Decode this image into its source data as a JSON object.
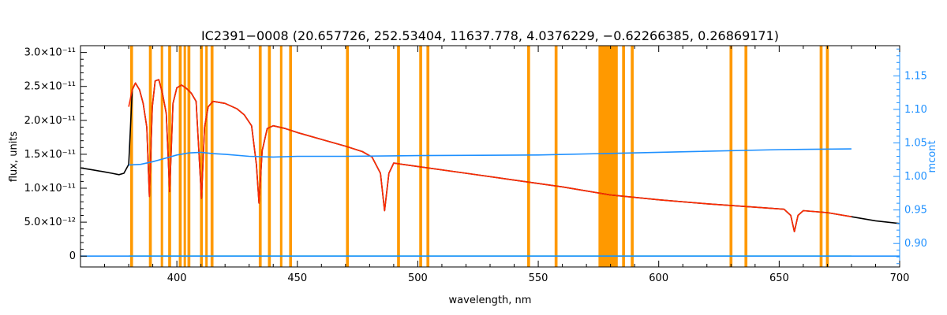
{
  "chart_data": {
    "type": "line",
    "title": "IC2391−0008    (20.657726, 252.53404, 11637.778, 4.0376229, −0.62266385, 0.26869171)",
    "xlabel": "wavelength, nm",
    "ylabel": "flux, units",
    "ylabel_right": "mcont",
    "xlim": [
      360,
      700
    ],
    "ylim": [
      -1.6e-12,
      3.1e-11
    ],
    "ylim_right": [
      0.865,
      1.195
    ],
    "x_ticks": [
      400,
      450,
      500,
      550,
      600,
      650,
      700
    ],
    "y_ticks": [
      {
        "value": 0,
        "label": "0"
      },
      {
        "value": 5e-12,
        "label": "5.0×10⁻¹²"
      },
      {
        "value": 1e-11,
        "label": "1.0×10⁻¹¹"
      },
      {
        "value": 1.5e-11,
        "label": "1.5×10⁻¹¹"
      },
      {
        "value": 2e-11,
        "label": "2.0×10⁻¹¹"
      },
      {
        "value": 2.5e-11,
        "label": "2.5×10⁻¹¹"
      },
      {
        "value": 3e-11,
        "label": "3.0×10⁻¹¹"
      }
    ],
    "y_ticks_right": [
      0.9,
      0.95,
      1.0,
      1.05,
      1.1,
      1.15
    ],
    "masked_regions": [
      [
        380.6,
        381.8
      ],
      [
        388.4,
        389.6
      ],
      [
        393.3,
        394.3
      ],
      [
        396.4,
        397.6
      ],
      [
        400.8,
        402.0
      ],
      [
        402.8,
        403.8
      ],
      [
        404.4,
        405.6
      ],
      [
        409.6,
        410.8
      ],
      [
        411.8,
        412.8
      ],
      [
        414.0,
        415.2
      ],
      [
        434.0,
        435.2
      ],
      [
        437.8,
        439.0
      ],
      [
        442.8,
        443.8
      ],
      [
        446.6,
        447.8
      ],
      [
        470.2,
        471.4
      ],
      [
        491.4,
        492.6
      ],
      [
        500.6,
        501.8
      ],
      [
        503.6,
        504.8
      ],
      [
        545.4,
        546.6
      ],
      [
        556.8,
        558.0
      ],
      [
        575.0,
        583.0
      ],
      [
        584.8,
        586.0
      ],
      [
        588.4,
        589.6
      ],
      [
        629.4,
        630.6
      ],
      [
        635.6,
        636.8
      ],
      [
        666.8,
        668.0
      ],
      [
        669.4,
        670.6
      ]
    ],
    "mask_color": "#ff9900",
    "series": [
      {
        "color": "#000000",
        "points": [
          [
            360,
            1.3e-11
          ],
          [
            365,
            1.27e-11
          ],
          [
            370,
            1.24e-11
          ],
          [
            373,
            1.22e-11
          ],
          [
            376,
            1.2e-11
          ],
          [
            378,
            1.22e-11
          ],
          [
            380,
            1.35e-11
          ],
          [
            381.5,
            2.45e-11
          ],
          [
            382.8,
            2.55e-11
          ],
          [
            384.5,
            2.45e-11
          ],
          [
            386,
            2.25e-11
          ],
          [
            387.5,
            1.9e-11
          ],
          [
            388.6,
            8.8e-12
          ],
          [
            389.8,
            2.2e-11
          ],
          [
            391,
            2.58e-11
          ],
          [
            392.5,
            2.6e-11
          ],
          [
            394,
            2.4e-11
          ],
          [
            395.6,
            2.1e-11
          ],
          [
            397,
            9.5e-12
          ],
          [
            398.4,
            2.25e-11
          ],
          [
            400,
            2.48e-11
          ],
          [
            402,
            2.52e-11
          ],
          [
            404,
            2.47e-11
          ],
          [
            406,
            2.4e-11
          ],
          [
            408,
            2.28e-11
          ],
          [
            410.2,
            8.5e-12
          ],
          [
            411.5,
            1.9e-11
          ],
          [
            413,
            2.2e-11
          ],
          [
            415,
            2.28e-11
          ],
          [
            420,
            2.25e-11
          ],
          [
            425,
            2.17e-11
          ],
          [
            428,
            2.08e-11
          ],
          [
            431,
            1.92e-11
          ],
          [
            433,
            1.35e-11
          ],
          [
            434.1,
            7.8e-12
          ],
          [
            435.4,
            1.55e-11
          ],
          [
            437.5,
            1.88e-11
          ],
          [
            440,
            1.92e-11
          ],
          [
            445,
            1.88e-11
          ],
          [
            450,
            1.82e-11
          ],
          [
            460,
            1.72e-11
          ],
          [
            470,
            1.62e-11
          ],
          [
            477,
            1.54e-11
          ],
          [
            481,
            1.46e-11
          ],
          [
            484.5,
            1.22e-11
          ],
          [
            486.2,
            6.7e-12
          ],
          [
            488,
            1.22e-11
          ],
          [
            490,
            1.37e-11
          ],
          [
            500,
            1.32e-11
          ],
          [
            520,
            1.22e-11
          ],
          [
            540,
            1.12e-11
          ],
          [
            560,
            1.02e-11
          ],
          [
            580,
            9e-12
          ],
          [
            600,
            8.3e-12
          ],
          [
            620,
            7.7e-12
          ],
          [
            640,
            7.2e-12
          ],
          [
            652,
            6.9e-12
          ],
          [
            654.8,
            6e-12
          ],
          [
            656.3,
            3.6e-12
          ],
          [
            657.8,
            6e-12
          ],
          [
            660,
            6.7e-12
          ],
          [
            670,
            6.4e-12
          ],
          [
            680,
            5.8e-12
          ],
          [
            690,
            5.2e-12
          ],
          [
            700,
            4.8e-12
          ]
        ]
      },
      {
        "color": "#ff2a00",
        "points": [
          [
            380,
            2.2e-11
          ],
          [
            381.5,
            2.45e-11
          ],
          [
            382.8,
            2.55e-11
          ],
          [
            384.5,
            2.45e-11
          ],
          [
            386,
            2.25e-11
          ],
          [
            387.5,
            1.9e-11
          ],
          [
            388.6,
            8.8e-12
          ],
          [
            389.8,
            2.2e-11
          ],
          [
            391,
            2.58e-11
          ],
          [
            392.5,
            2.6e-11
          ],
          [
            394,
            2.4e-11
          ],
          [
            395.6,
            2.1e-11
          ],
          [
            397,
            9.5e-12
          ],
          [
            398.4,
            2.25e-11
          ],
          [
            400,
            2.48e-11
          ],
          [
            402,
            2.52e-11
          ],
          [
            404,
            2.47e-11
          ],
          [
            406,
            2.4e-11
          ],
          [
            408,
            2.28e-11
          ],
          [
            410.2,
            8.5e-12
          ],
          [
            411.5,
            1.9e-11
          ],
          [
            413,
            2.2e-11
          ],
          [
            415,
            2.28e-11
          ],
          [
            420,
            2.25e-11
          ],
          [
            425,
            2.17e-11
          ],
          [
            428,
            2.08e-11
          ],
          [
            431,
            1.92e-11
          ],
          [
            433,
            1.35e-11
          ],
          [
            434.1,
            7.8e-12
          ],
          [
            435.4,
            1.55e-11
          ],
          [
            437.5,
            1.88e-11
          ],
          [
            440,
            1.92e-11
          ],
          [
            445,
            1.88e-11
          ],
          [
            450,
            1.82e-11
          ],
          [
            460,
            1.72e-11
          ],
          [
            470,
            1.62e-11
          ],
          [
            477,
            1.54e-11
          ],
          [
            481,
            1.46e-11
          ],
          [
            484.5,
            1.22e-11
          ],
          [
            486.2,
            6.7e-12
          ],
          [
            488,
            1.22e-11
          ],
          [
            490,
            1.37e-11
          ],
          [
            500,
            1.32e-11
          ],
          [
            520,
            1.22e-11
          ],
          [
            540,
            1.12e-11
          ],
          [
            560,
            1.02e-11
          ],
          [
            580,
            9e-12
          ],
          [
            600,
            8.3e-12
          ],
          [
            620,
            7.7e-12
          ],
          [
            640,
            7.2e-12
          ],
          [
            652,
            6.9e-12
          ],
          [
            654.8,
            6e-12
          ],
          [
            656.3,
            3.6e-12
          ],
          [
            657.8,
            6e-12
          ],
          [
            660,
            6.7e-12
          ],
          [
            670,
            6.4e-12
          ],
          [
            680,
            5.8e-12
          ]
        ]
      },
      {
        "color": "#00ee66",
        "points": [
          [
            380,
            0
          ],
          [
            400,
            0
          ],
          [
            450,
            0
          ],
          [
            500,
            0
          ],
          [
            550,
            0
          ],
          [
            600,
            0
          ],
          [
            650,
            0
          ],
          [
            680,
            0
          ]
        ]
      },
      {
        "color": "#1e90ff",
        "axis": "right",
        "points": [
          [
            380,
            1.017
          ],
          [
            385,
            1.018
          ],
          [
            390,
            1.022
          ],
          [
            395,
            1.027
          ],
          [
            400,
            1.032
          ],
          [
            405,
            1.035
          ],
          [
            410,
            1.036
          ],
          [
            415,
            1.034
          ],
          [
            420,
            1.033
          ],
          [
            430,
            1.03
          ],
          [
            440,
            1.029
          ],
          [
            450,
            1.03
          ],
          [
            470,
            1.03
          ],
          [
            500,
            1.031
          ],
          [
            550,
            1.032
          ],
          [
            600,
            1.036
          ],
          [
            650,
            1.04
          ],
          [
            680,
            1.041
          ]
        ]
      },
      {
        "color": "#1e90ff",
        "points": [
          [
            360,
            0
          ],
          [
            380,
            0
          ],
          [
            680,
            0
          ],
          [
            700,
            0
          ]
        ]
      }
    ]
  }
}
